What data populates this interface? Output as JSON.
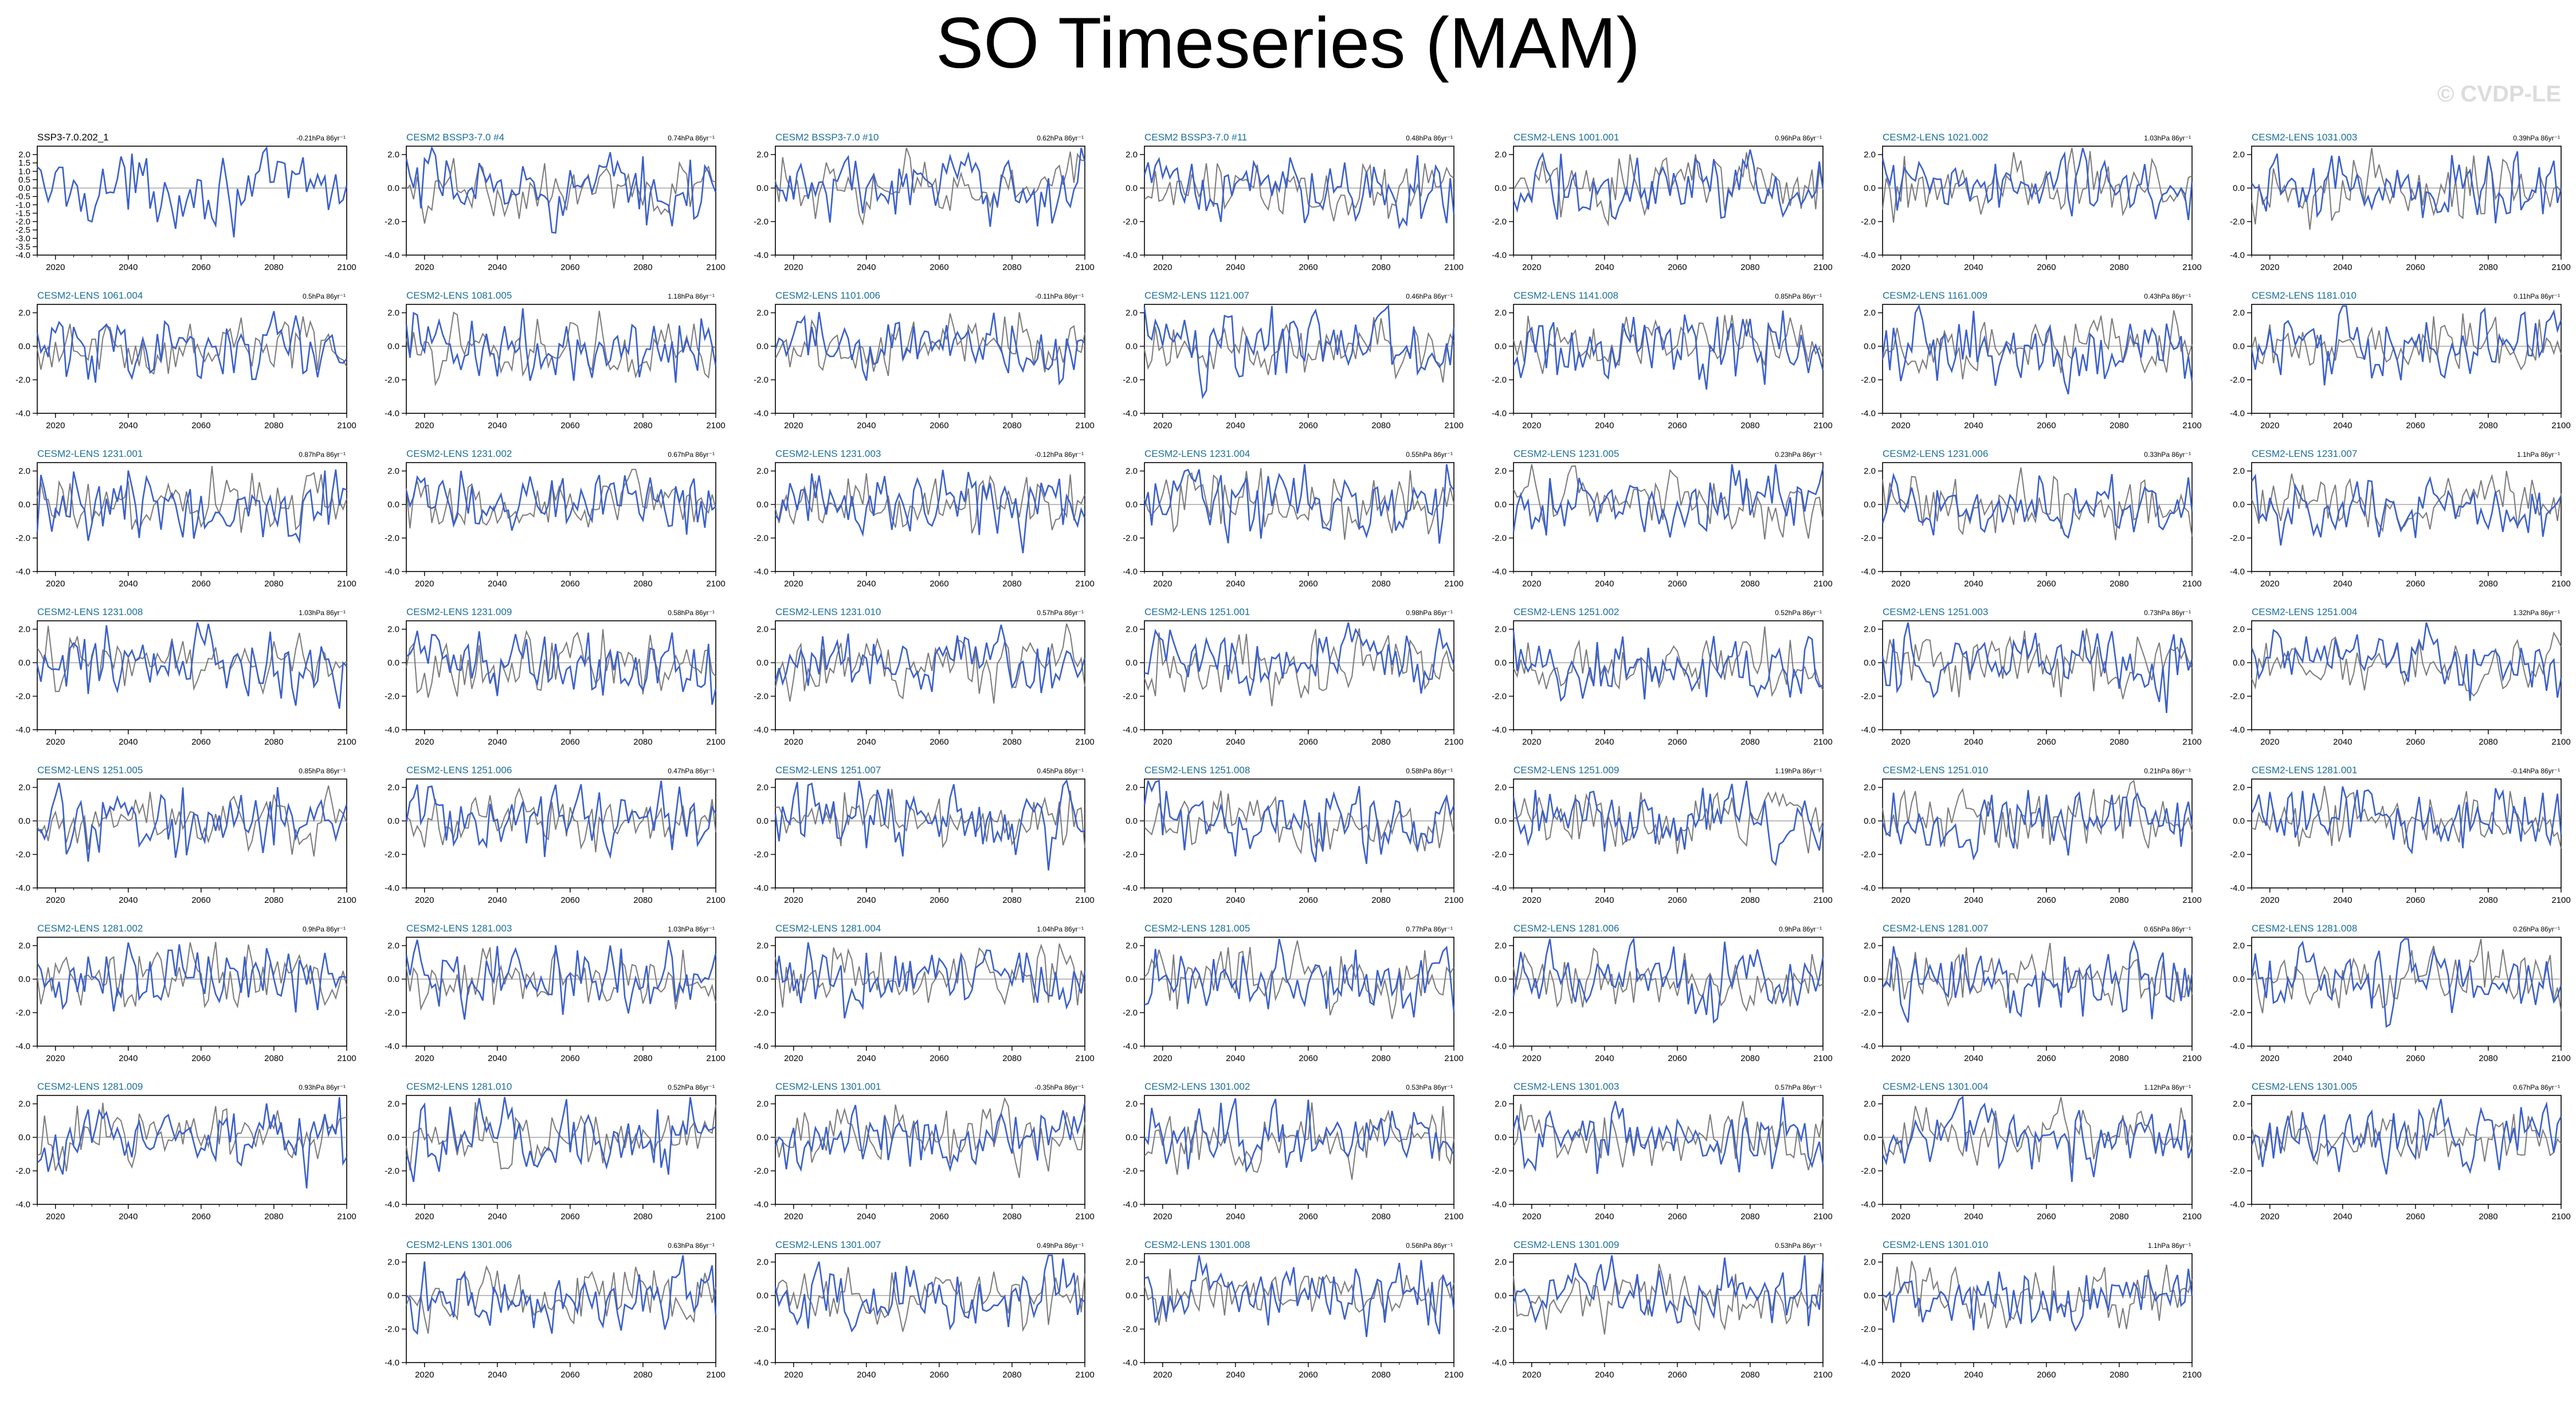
{
  "title": "SO Timeseries (MAM)",
  "watermark": "© CVDP-LE",
  "colors": {
    "ensemble": "#3a5fcd",
    "reference": "#7a7a7a",
    "title_obs": "#000000",
    "title_model": "#1a6e9a"
  },
  "chart_data": {
    "type": "line",
    "x_range": [
      2015,
      2100
    ],
    "x_ticks": [
      "2020",
      "2040",
      "2060",
      "2080",
      "2100"
    ],
    "y_range": [
      -4.0,
      2.5
    ],
    "y_ticks": [
      "2.0",
      "0.0",
      "-2.0",
      "-4.0"
    ],
    "y_ticks_first_panel": [
      "2.0",
      "1.5",
      "1.0",
      "0.5",
      "0.0",
      "-0.5",
      "-1.0",
      "-1.5",
      "-2.0",
      "-2.5",
      "-3.0",
      "-3.5",
      "-4.0"
    ],
    "panels": [
      {
        "name": "SSP3-7.0.202_1",
        "trend": "-0.21hPa 86yr⁻¹"
      },
      {
        "name": "CESM2 BSSP3-7.0 #4",
        "trend": "0.74hPa 86yr⁻¹"
      },
      {
        "name": "CESM2 BSSP3-7.0 #10",
        "trend": "0.62hPa 86yr⁻¹"
      },
      {
        "name": "CESM2 BSSP3-7.0 #11",
        "trend": "0.48hPa 86yr⁻¹"
      },
      {
        "name": "CESM2-LENS 1001.001",
        "trend": "0.96hPa 86yr⁻¹"
      },
      {
        "name": "CESM2-LENS 1021.002",
        "trend": "1.03hPa 86yr⁻¹"
      },
      {
        "name": "CESM2-LENS 1031.003",
        "trend": "0.39hPa 86yr⁻¹"
      },
      {
        "name": "CESM2-LENS 1061.004",
        "trend": "0.5hPa 86yr⁻¹"
      },
      {
        "name": "CESM2-LENS 1081.005",
        "trend": "1.18hPa 86yr⁻¹"
      },
      {
        "name": "CESM2-LENS 1101.006",
        "trend": "-0.11hPa 86yr⁻¹"
      },
      {
        "name": "CESM2-LENS 1121.007",
        "trend": "0.46hPa 86yr⁻¹"
      },
      {
        "name": "CESM2-LENS 1141.008",
        "trend": "0.85hPa 86yr⁻¹"
      },
      {
        "name": "CESM2-LENS 1161.009",
        "trend": "0.43hPa 86yr⁻¹"
      },
      {
        "name": "CESM2-LENS 1181.010",
        "trend": "0.11hPa 86yr⁻¹"
      },
      {
        "name": "CESM2-LENS 1231.001",
        "trend": "0.87hPa 86yr⁻¹"
      },
      {
        "name": "CESM2-LENS 1231.002",
        "trend": "0.67hPa 86yr⁻¹"
      },
      {
        "name": "CESM2-LENS 1231.003",
        "trend": "-0.12hPa 86yr⁻¹"
      },
      {
        "name": "CESM2-LENS 1231.004",
        "trend": "0.55hPa 86yr⁻¹"
      },
      {
        "name": "CESM2-LENS 1231.005",
        "trend": "0.23hPa 86yr⁻¹"
      },
      {
        "name": "CESM2-LENS 1231.006",
        "trend": "0.33hPa 86yr⁻¹"
      },
      {
        "name": "CESM2-LENS 1231.007",
        "trend": "1.1hPa 86yr⁻¹"
      },
      {
        "name": "CESM2-LENS 1231.008",
        "trend": "1.03hPa 86yr⁻¹"
      },
      {
        "name": "CESM2-LENS 1231.009",
        "trend": "0.58hPa 86yr⁻¹"
      },
      {
        "name": "CESM2-LENS 1231.010",
        "trend": "0.57hPa 86yr⁻¹"
      },
      {
        "name": "CESM2-LENS 1251.001",
        "trend": "0.98hPa 86yr⁻¹"
      },
      {
        "name": "CESM2-LENS 1251.002",
        "trend": "0.52hPa 86yr⁻¹"
      },
      {
        "name": "CESM2-LENS 1251.003",
        "trend": "0.73hPa 86yr⁻¹"
      },
      {
        "name": "CESM2-LENS 1251.004",
        "trend": "1.32hPa 86yr⁻¹"
      },
      {
        "name": "CESM2-LENS 1251.005",
        "trend": "0.85hPa 86yr⁻¹"
      },
      {
        "name": "CESM2-LENS 1251.006",
        "trend": "0.47hPa 86yr⁻¹"
      },
      {
        "name": "CESM2-LENS 1251.007",
        "trend": "0.45hPa 86yr⁻¹"
      },
      {
        "name": "CESM2-LENS 1251.008",
        "trend": "0.58hPa 86yr⁻¹"
      },
      {
        "name": "CESM2-LENS 1251.009",
        "trend": "1.19hPa 86yr⁻¹"
      },
      {
        "name": "CESM2-LENS 1251.010",
        "trend": "0.21hPa 86yr⁻¹"
      },
      {
        "name": "CESM2-LENS 1281.001",
        "trend": "-0.14hPa 86yr⁻¹"
      },
      {
        "name": "CESM2-LENS 1281.002",
        "trend": "0.9hPa 86yr⁻¹"
      },
      {
        "name": "CESM2-LENS 1281.003",
        "trend": "1.03hPa 86yr⁻¹"
      },
      {
        "name": "CESM2-LENS 1281.004",
        "trend": "1.04hPa 86yr⁻¹"
      },
      {
        "name": "CESM2-LENS 1281.005",
        "trend": "0.77hPa 86yr⁻¹"
      },
      {
        "name": "CESM2-LENS 1281.006",
        "trend": "0.9hPa 86yr⁻¹"
      },
      {
        "name": "CESM2-LENS 1281.007",
        "trend": "0.65hPa 86yr⁻¹"
      },
      {
        "name": "CESM2-LENS 1281.008",
        "trend": "0.26hPa 86yr⁻¹"
      },
      {
        "name": "CESM2-LENS 1281.009",
        "trend": "0.93hPa 86yr⁻¹"
      },
      {
        "name": "CESM2-LENS 1281.010",
        "trend": "0.52hPa 86yr⁻¹"
      },
      {
        "name": "CESM2-LENS 1301.001",
        "trend": "-0.35hPa 86yr⁻¹"
      },
      {
        "name": "CESM2-LENS 1301.002",
        "trend": "0.53hPa 86yr⁻¹"
      },
      {
        "name": "CESM2-LENS 1301.003",
        "trend": "0.57hPa 86yr⁻¹"
      },
      {
        "name": "CESM2-LENS 1301.004",
        "trend": "1.12hPa 86yr⁻¹"
      },
      {
        "name": "CESM2-LENS 1301.005",
        "trend": "0.67hPa 86yr⁻¹"
      },
      {
        "name": "CESM2-LENS 1301.006",
        "trend": "0.63hPa 86yr⁻¹"
      },
      {
        "name": "CESM2-LENS 1301.007",
        "trend": "0.49hPa 86yr⁻¹"
      },
      {
        "name": "CESM2-LENS 1301.008",
        "trend": "0.56hPa 86yr⁻¹"
      },
      {
        "name": "CESM2-LENS 1301.009",
        "trend": "0.53hPa 86yr⁻¹"
      },
      {
        "name": "CESM2-LENS 1301.010",
        "trend": "1.1hPa 86yr⁻¹"
      }
    ]
  }
}
